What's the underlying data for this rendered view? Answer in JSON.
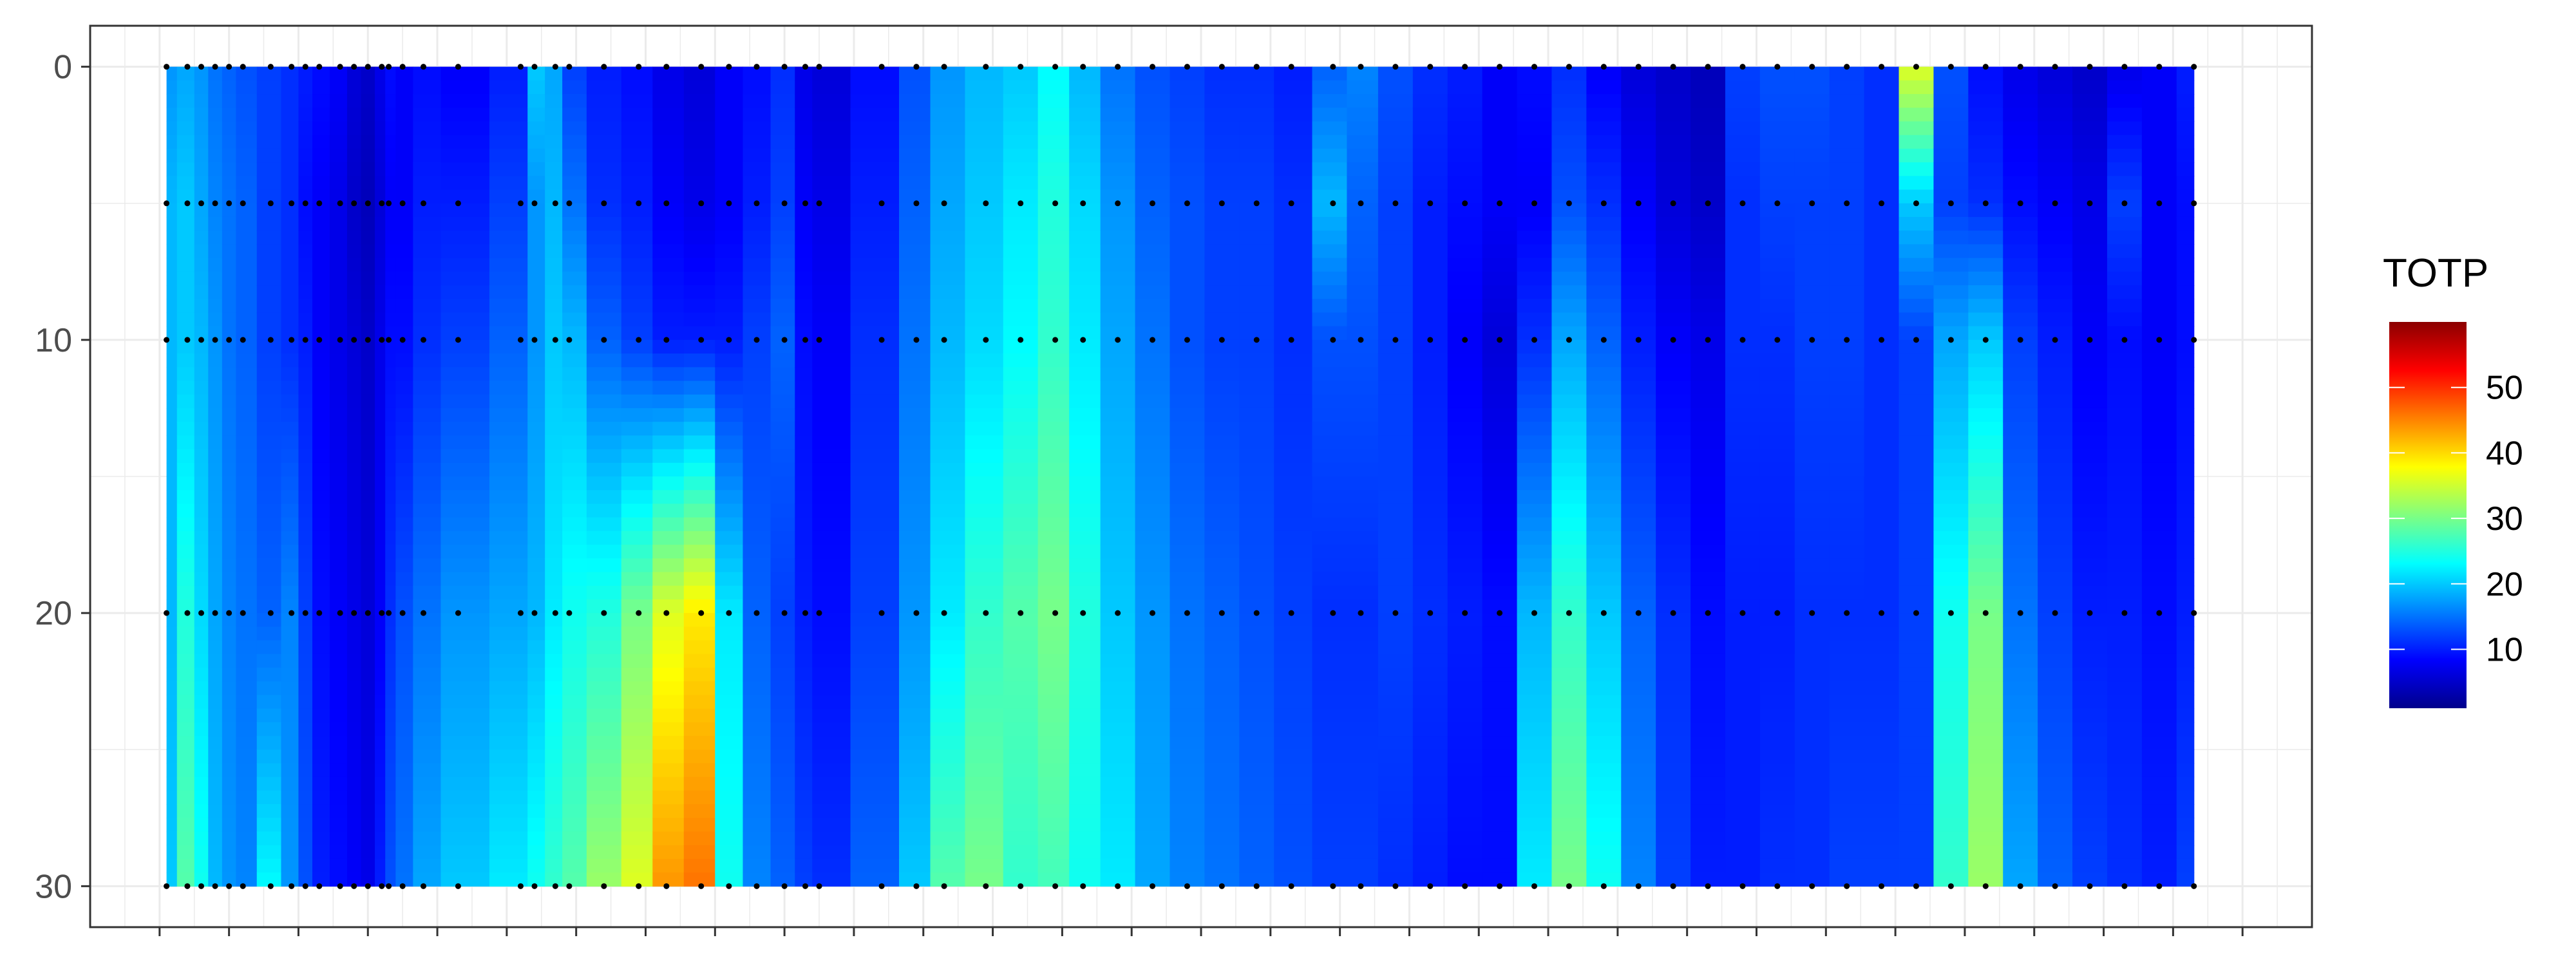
{
  "chart_data": {
    "type": "heatmap",
    "title": "",
    "xlabel": "",
    "ylabel": "",
    "legend": {
      "title": "TOTP",
      "ticks": [
        10,
        20,
        30,
        40,
        50
      ],
      "range": [
        1,
        60
      ],
      "position": "right",
      "colors": [
        "#00008B",
        "#0000FF",
        "#0080FF",
        "#00FFFF",
        "#80FF80",
        "#FFFF00",
        "#FF8000",
        "#FF0000",
        "#8B0000"
      ]
    },
    "y_axis": {
      "reversed": true,
      "ticks": [
        0,
        10,
        20,
        30
      ],
      "range": [
        -1.5,
        31.5
      ]
    },
    "x_axis": {
      "range": [
        0,
        32
      ],
      "tick_labels_shown": false
    },
    "depths": [
      0,
      5,
      10,
      20,
      30
    ],
    "gap_between": [
      10,
      11
    ],
    "sample_columns": [
      1.1,
      1.4,
      1.6,
      1.8,
      2.0,
      2.2,
      2.6,
      2.9,
      3.1,
      3.3,
      3.6,
      3.8,
      4.0,
      4.2,
      4.3,
      4.5,
      4.8,
      5.3,
      6.2,
      6.4,
      6.7,
      6.9,
      7.4,
      7.9,
      8.3,
      8.8,
      9.2,
      9.6,
      10.0,
      10.3,
      10.5,
      11.4,
      11.9,
      12.3,
      12.9,
      13.4,
      13.9,
      14.3,
      14.8,
      15.3,
      15.8,
      16.3,
      16.8,
      17.3,
      17.9,
      18.3,
      18.8,
      19.3,
      19.8,
      20.3,
      20.8,
      21.3,
      21.8,
      22.3,
      22.8,
      23.3,
      23.8,
      24.3,
      24.8,
      25.3,
      25.8,
      26.3,
      26.8,
      27.3,
      27.8,
      28.3,
      28.8,
      29.3,
      29.8,
      30.3
    ],
    "series": [
      {
        "depth": 0,
        "values": [
          17,
          18,
          17,
          15,
          14,
          13,
          12,
          11,
          10,
          9,
          8,
          6,
          5,
          7,
          9,
          8,
          9,
          8,
          10,
          20,
          18,
          12,
          10,
          9,
          7,
          6,
          8,
          9,
          11,
          7,
          6,
          9,
          13,
          17,
          19,
          20,
          23,
          19,
          15,
          13,
          12,
          11,
          11,
          10,
          14,
          16,
          13,
          11,
          10,
          8,
          9,
          11,
          8,
          6,
          5,
          4,
          12,
          13,
          13,
          12,
          11,
          36,
          13,
          9,
          7,
          6,
          5,
          7,
          8,
          10
        ]
      },
      {
        "depth": 5,
        "values": [
          19,
          20,
          18,
          16,
          15,
          14,
          12,
          11,
          9,
          8,
          7,
          5,
          4,
          6,
          8,
          8,
          10,
          10,
          12,
          17,
          19,
          15,
          11,
          10,
          8,
          7,
          8,
          10,
          12,
          8,
          7,
          10,
          14,
          18,
          20,
          22,
          25,
          21,
          17,
          14,
          13,
          12,
          12,
          11,
          19,
          14,
          12,
          10,
          9,
          8,
          8,
          13,
          11,
          8,
          6,
          5,
          11,
          12,
          12,
          12,
          11,
          20,
          12,
          11,
          9,
          8,
          7,
          12,
          8,
          9
        ]
      },
      {
        "depth": 10,
        "values": [
          19,
          20,
          19,
          17,
          15,
          14,
          12,
          11,
          10,
          8,
          7,
          6,
          5,
          7,
          9,
          9,
          11,
          12,
          14,
          17,
          20,
          19,
          14,
          12,
          10,
          10,
          10,
          12,
          14,
          9,
          8,
          11,
          15,
          19,
          21,
          23,
          26,
          22,
          18,
          15,
          13,
          12,
          12,
          11,
          13,
          13,
          12,
          10,
          8,
          6,
          11,
          18,
          14,
          10,
          8,
          7,
          11,
          11,
          12,
          12,
          11,
          12,
          18,
          20,
          12,
          10,
          8,
          9,
          8,
          9
        ]
      },
      {
        "depth": 20,
        "values": [
          19,
          25,
          21,
          18,
          16,
          15,
          14,
          16,
          12,
          9,
          8,
          7,
          6,
          8,
          11,
          13,
          15,
          17,
          18,
          19,
          22,
          24,
          25,
          30,
          36,
          39,
          22,
          14,
          12,
          10,
          9,
          12,
          17,
          22,
          26,
          28,
          30,
          25,
          20,
          17,
          15,
          14,
          13,
          12,
          11,
          11,
          12,
          11,
          10,
          9,
          19,
          26,
          20,
          14,
          11,
          9,
          10,
          10,
          11,
          11,
          11,
          12,
          24,
          30,
          15,
          12,
          10,
          10,
          9,
          10
        ]
      },
      {
        "depth": 30,
        "values": [
          20,
          28,
          24,
          19,
          17,
          16,
          23,
          17,
          13,
          10,
          9,
          8,
          7,
          10,
          13,
          15,
          18,
          20,
          22,
          24,
          26,
          28,
          32,
          36,
          44,
          46,
          24,
          16,
          14,
          12,
          11,
          14,
          20,
          28,
          30,
          26,
          27,
          24,
          22,
          18,
          16,
          15,
          14,
          13,
          12,
          12,
          11,
          10,
          9,
          9,
          22,
          30,
          24,
          16,
          12,
          10,
          10,
          11,
          11,
          12,
          12,
          12,
          26,
          32,
          18,
          14,
          12,
          11,
          10,
          12
        ]
      }
    ]
  }
}
